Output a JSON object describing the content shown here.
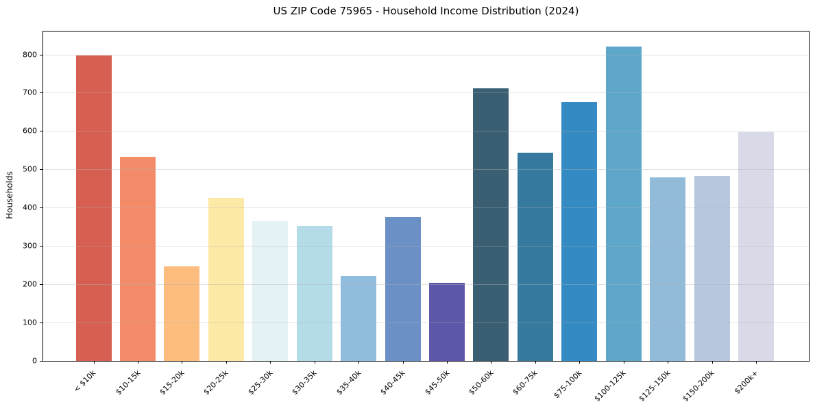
{
  "chart_data": {
    "type": "bar",
    "title": "US ZIP Code 75965 - Household Income Distribution (2024)",
    "xlabel": "",
    "ylabel": "Households",
    "categories": [
      "< $10k",
      "$10-15k",
      "$15-20k",
      "$20-25k",
      "$25-30k",
      "$30-35k",
      "$35-40k",
      "$40-45k",
      "$45-50k",
      "$50-60k",
      "$60-75k",
      "$75-100k",
      "$100-125k",
      "$125-150k",
      "$150-200k",
      "$200k+"
    ],
    "values": [
      798,
      533,
      246,
      426,
      364,
      353,
      222,
      376,
      204,
      711,
      543,
      675,
      821,
      479,
      483,
      598
    ],
    "bar_colors": [
      "#d65f51",
      "#f48b68",
      "#fcbd7f",
      "#fde9a6",
      "#e4f2f5",
      "#b4dbe8",
      "#90bddd",
      "#6b90c6",
      "#5c57a9",
      "#3a5f72",
      "#357a9e",
      "#348ac2",
      "#5ea7cb",
      "#92bbda",
      "#b7c8de",
      "#d8dae8"
    ],
    "ylim": [
      0,
      860
    ],
    "yticks": [
      0,
      100,
      200,
      300,
      400,
      500,
      600,
      700,
      800
    ],
    "grid": "horizontal-light-gray",
    "legend": "none",
    "spine_color": "#000000",
    "background_color": "#ffffff",
    "x_tick_rotation_deg": 45
  }
}
